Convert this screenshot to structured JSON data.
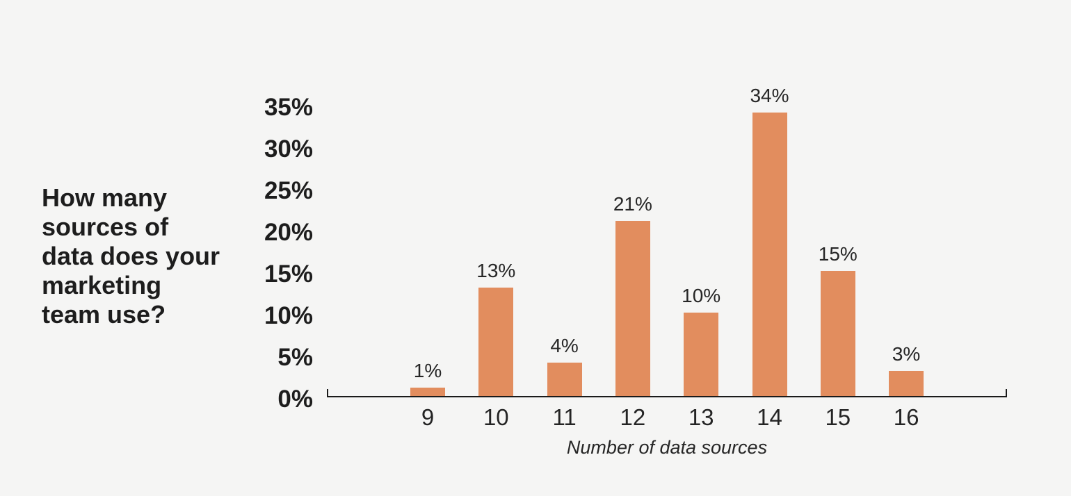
{
  "chart_data": {
    "type": "bar",
    "title": "How many\nsources of\ndata does your\nmarketing\nteam use?",
    "categories": [
      "9",
      "10",
      "11",
      "12",
      "13",
      "14",
      "15",
      "16"
    ],
    "values": [
      1,
      13,
      4,
      21,
      10,
      34,
      15,
      3
    ],
    "bar_labels": [
      "1%",
      "13%",
      "4%",
      "21%",
      "10%",
      "34%",
      "15%",
      "3%"
    ],
    "xlabel": "Number of data sources",
    "ylabel": "",
    "yticks": [
      "35%",
      "30%",
      "25%",
      "20%",
      "15%",
      "10%",
      "5%",
      "0%"
    ],
    "ylim": [
      0,
      35
    ],
    "grid": false,
    "legend": false,
    "layout_hints": "single series, vertical bars, value labels above bars, y tick labels bold, x axis title italic, axis line with upward end ticks only, no gridlines"
  },
  "colors": {
    "background": "#f5f5f4",
    "bar": "#e28d5e",
    "title_text": "#1d1d1d",
    "tick_text": "#242424",
    "label_text": "#262626",
    "axis": "#1a1a1a"
  }
}
